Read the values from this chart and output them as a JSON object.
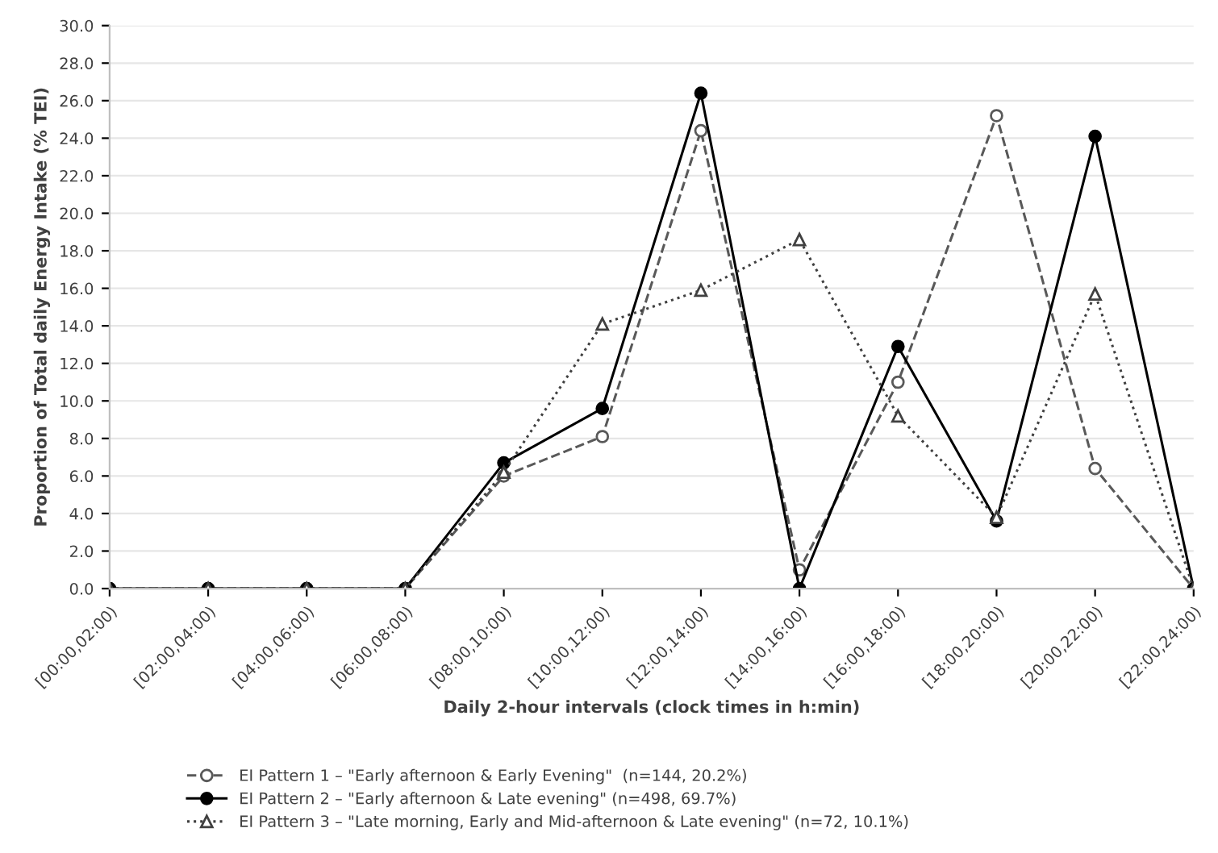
{
  "chart_data": {
    "type": "line",
    "xlabel": "Daily 2-hour intervals (clock times in h:min)",
    "ylabel": "Proportion of Total daily Energy Intake (% TEI)",
    "categories": [
      "[00:00,02:00)",
      "[02:00,04:00)",
      "[04:00,06:00)",
      "[06:00,08:00)",
      "[08:00,10:00)",
      "[10:00,12:00)",
      "[12:00,14:00)",
      "[14:00,16:00)",
      "[16:00,18:00)",
      "[18:00,20:00)",
      "[20:00,22:00)",
      "[22:00,24:00)"
    ],
    "ylim": [
      0,
      30
    ],
    "yticks": [
      {
        "value": 0,
        "label": "0.0"
      },
      {
        "value": 2,
        "label": "2.0"
      },
      {
        "value": 4,
        "label": "4.0"
      },
      {
        "value": 6,
        "label": "6.0"
      },
      {
        "value": 8,
        "label": "8.0"
      },
      {
        "value": 10,
        "label": "10.0"
      },
      {
        "value": 12,
        "label": "12.0"
      },
      {
        "value": 14,
        "label": "14.0"
      },
      {
        "value": 16,
        "label": "16.0"
      },
      {
        "value": 18,
        "label": "18.0"
      },
      {
        "value": 20,
        "label": "20.0"
      },
      {
        "value": 22,
        "label": "22.0"
      },
      {
        "value": 24,
        "label": "24.0"
      },
      {
        "value": 26,
        "label": "26.0"
      },
      {
        "value": 28,
        "label": "28.0"
      },
      {
        "value": 30,
        "label": "30.0"
      }
    ],
    "grid": "y",
    "legend": "bottom",
    "series": [
      {
        "name": "EI Pattern 1 – \"Early afternoon & Early Evening\"  (n=144, 20.2%)",
        "color": "#595959",
        "marker": "circle",
        "line_style": "dashed",
        "values": [
          0,
          0,
          0,
          0,
          6.0,
          8.1,
          24.4,
          1.0,
          11.0,
          25.2,
          6.4,
          0
        ]
      },
      {
        "name": "EI Pattern 2 – \"Early afternoon & Late evening\" (n=498, 69.7%)",
        "color": "#000000",
        "marker": "circle",
        "line_style": "solid",
        "values": [
          0,
          0,
          0,
          0,
          6.7,
          9.6,
          26.4,
          0,
          12.9,
          3.6,
          24.1,
          0
        ]
      },
      {
        "name": "EI Pattern 3 – \"Late morning, Early and Mid-afternoon & Late evening\" (n=72, 10.1%)",
        "color": "#404040",
        "marker": "triangle",
        "line_style": "dotted",
        "values": [
          0,
          0,
          0,
          0,
          6.2,
          14.1,
          15.9,
          18.6,
          9.2,
          3.8,
          15.7,
          0
        ]
      }
    ]
  }
}
